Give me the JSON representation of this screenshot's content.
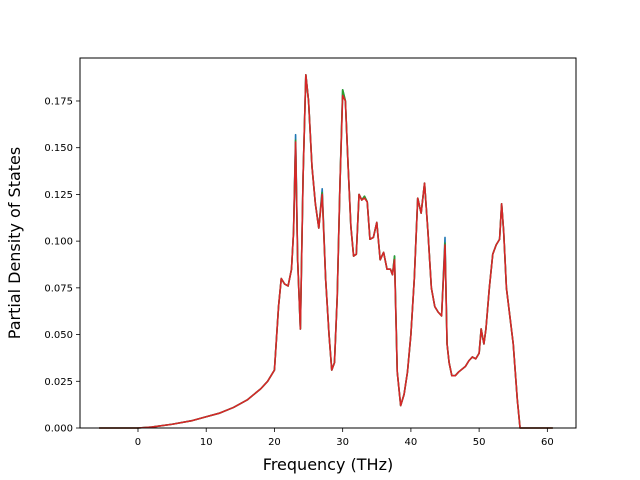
{
  "chart_data": {
    "type": "line",
    "title": "",
    "xlabel": "Frequency (THz)",
    "ylabel": "Partial Density of States",
    "xlim": [
      -8.5,
      64.2
    ],
    "ylim": [
      0.0,
      0.198
    ],
    "xticks": [
      0,
      10,
      20,
      30,
      40,
      50,
      60
    ],
    "yticks": [
      0.0,
      0.025,
      0.05,
      0.075,
      0.1,
      0.125,
      0.15,
      0.175
    ],
    "ytick_labels": [
      "0.000",
      "0.025",
      "0.050",
      "0.075",
      "0.100",
      "0.125",
      "0.150",
      "0.175"
    ],
    "grid": false,
    "legend": "none",
    "series": [
      {
        "color": "#1f77b4",
        "x": [
          -5.7,
          0,
          2,
          5,
          8,
          10,
          12,
          14,
          16,
          18,
          19,
          20,
          20.6,
          21,
          21.5,
          22,
          22.5,
          22.8,
          23.1,
          23.4,
          23.8,
          24.2,
          24.6,
          25,
          25.5,
          26,
          26.5,
          27,
          27.5,
          28,
          28.4,
          28.8,
          29.2,
          29.6,
          30,
          30.4,
          30.8,
          31.2,
          31.6,
          32,
          32.4,
          32.8,
          33.2,
          33.6,
          34,
          34.5,
          35,
          35.5,
          36,
          36.5,
          37,
          37.3,
          37.6,
          38,
          38.5,
          39,
          39.5,
          40,
          40.5,
          41,
          41.5,
          42,
          42.5,
          43,
          43.5,
          44,
          44.5,
          45,
          45.3,
          45.6,
          46,
          46.5,
          47,
          48,
          48.5,
          49,
          49.5,
          50,
          50.3,
          50.7,
          51,
          51.5,
          52,
          52.5,
          53,
          53.3,
          53.6,
          54,
          54.5,
          55,
          55.3,
          55.6,
          56,
          58,
          60.8
        ],
        "y": [
          0.0,
          0.0,
          0.0005,
          0.002,
          0.004,
          0.006,
          0.008,
          0.011,
          0.015,
          0.021,
          0.025,
          0.031,
          0.065,
          0.08,
          0.077,
          0.076,
          0.085,
          0.105,
          0.157,
          0.09,
          0.053,
          0.135,
          0.189,
          0.175,
          0.14,
          0.12,
          0.107,
          0.128,
          0.08,
          0.05,
          0.031,
          0.035,
          0.07,
          0.13,
          0.181,
          0.175,
          0.14,
          0.108,
          0.092,
          0.093,
          0.125,
          0.122,
          0.124,
          0.121,
          0.101,
          0.102,
          0.11,
          0.09,
          0.094,
          0.085,
          0.085,
          0.082,
          0.092,
          0.03,
          0.012,
          0.018,
          0.03,
          0.05,
          0.08,
          0.123,
          0.115,
          0.131,
          0.105,
          0.075,
          0.065,
          0.062,
          0.06,
          0.102,
          0.045,
          0.035,
          0.028,
          0.028,
          0.03,
          0.033,
          0.036,
          0.038,
          0.037,
          0.04,
          0.053,
          0.045,
          0.053,
          0.075,
          0.093,
          0.098,
          0.101,
          0.12,
          0.105,
          0.075,
          0.06,
          0.045,
          0.03,
          0.015,
          0.0,
          0.0,
          0.0
        ]
      },
      {
        "color": "#2ca02c",
        "x": [
          -5.7,
          0,
          2,
          5,
          8,
          10,
          12,
          14,
          16,
          18,
          19,
          20,
          20.6,
          21,
          21.5,
          22,
          22.5,
          22.8,
          23.1,
          23.4,
          23.8,
          24.2,
          24.6,
          25,
          25.5,
          26,
          26.5,
          27,
          27.5,
          28,
          28.4,
          28.8,
          29.2,
          29.6,
          30,
          30.4,
          30.8,
          31.2,
          31.6,
          32,
          32.4,
          32.8,
          33.2,
          33.6,
          34,
          34.5,
          35,
          35.5,
          36,
          36.5,
          37,
          37.3,
          37.6,
          38,
          38.5,
          39,
          39.5,
          40,
          40.5,
          41,
          41.5,
          42,
          42.5,
          43,
          43.5,
          44,
          44.5,
          45,
          45.3,
          45.6,
          46,
          46.5,
          47,
          48,
          48.5,
          49,
          49.5,
          50,
          50.3,
          50.7,
          51,
          51.5,
          52,
          52.5,
          53,
          53.3,
          53.6,
          54,
          54.5,
          55,
          55.3,
          55.6,
          56,
          58,
          60.8
        ],
        "y": [
          0.0,
          0.0,
          0.0005,
          0.002,
          0.004,
          0.006,
          0.008,
          0.011,
          0.015,
          0.021,
          0.025,
          0.031,
          0.065,
          0.08,
          0.077,
          0.076,
          0.085,
          0.105,
          0.154,
          0.09,
          0.053,
          0.135,
          0.189,
          0.175,
          0.14,
          0.12,
          0.107,
          0.126,
          0.08,
          0.05,
          0.031,
          0.035,
          0.07,
          0.13,
          0.181,
          0.175,
          0.14,
          0.108,
          0.092,
          0.093,
          0.125,
          0.122,
          0.124,
          0.121,
          0.101,
          0.102,
          0.11,
          0.09,
          0.094,
          0.085,
          0.085,
          0.082,
          0.092,
          0.03,
          0.012,
          0.018,
          0.03,
          0.05,
          0.08,
          0.123,
          0.115,
          0.131,
          0.105,
          0.075,
          0.065,
          0.062,
          0.06,
          0.099,
          0.045,
          0.035,
          0.028,
          0.028,
          0.03,
          0.033,
          0.036,
          0.038,
          0.037,
          0.04,
          0.053,
          0.045,
          0.053,
          0.075,
          0.093,
          0.098,
          0.101,
          0.12,
          0.105,
          0.075,
          0.06,
          0.045,
          0.03,
          0.015,
          0.0,
          0.0,
          0.0
        ]
      },
      {
        "color": "#d62728",
        "x": [
          -5.7,
          0,
          2,
          5,
          8,
          10,
          12,
          14,
          16,
          18,
          19,
          20,
          20.6,
          21,
          21.5,
          22,
          22.5,
          22.8,
          23.1,
          23.4,
          23.8,
          24.2,
          24.6,
          25,
          25.5,
          26,
          26.5,
          27,
          27.5,
          28,
          28.4,
          28.8,
          29.2,
          29.6,
          30,
          30.4,
          30.8,
          31.2,
          31.6,
          32,
          32.4,
          32.8,
          33.2,
          33.6,
          34,
          34.5,
          35,
          35.5,
          36,
          36.5,
          37,
          37.3,
          37.6,
          38,
          38.5,
          39,
          39.5,
          40,
          40.5,
          41,
          41.5,
          42,
          42.5,
          43,
          43.5,
          44,
          44.5,
          45,
          45.3,
          45.6,
          46,
          46.5,
          47,
          48,
          48.5,
          49,
          49.5,
          50,
          50.3,
          50.7,
          51,
          51.5,
          52,
          52.5,
          53,
          53.3,
          53.6,
          54,
          54.5,
          55,
          55.3,
          55.6,
          56,
          58,
          60.8
        ],
        "y": [
          0.0,
          0.0,
          0.0005,
          0.002,
          0.004,
          0.006,
          0.008,
          0.011,
          0.015,
          0.021,
          0.025,
          0.031,
          0.065,
          0.08,
          0.077,
          0.076,
          0.085,
          0.105,
          0.153,
          0.09,
          0.053,
          0.135,
          0.189,
          0.175,
          0.14,
          0.12,
          0.107,
          0.125,
          0.08,
          0.05,
          0.031,
          0.035,
          0.07,
          0.13,
          0.178,
          0.175,
          0.14,
          0.108,
          0.092,
          0.093,
          0.125,
          0.122,
          0.123,
          0.121,
          0.101,
          0.102,
          0.11,
          0.09,
          0.094,
          0.085,
          0.085,
          0.082,
          0.09,
          0.03,
          0.012,
          0.018,
          0.03,
          0.05,
          0.08,
          0.123,
          0.115,
          0.131,
          0.105,
          0.075,
          0.065,
          0.062,
          0.06,
          0.098,
          0.045,
          0.035,
          0.028,
          0.028,
          0.03,
          0.033,
          0.036,
          0.038,
          0.037,
          0.04,
          0.053,
          0.045,
          0.053,
          0.075,
          0.093,
          0.098,
          0.101,
          0.12,
          0.105,
          0.075,
          0.06,
          0.045,
          0.03,
          0.015,
          0.0,
          0.0,
          0.0
        ]
      }
    ]
  }
}
